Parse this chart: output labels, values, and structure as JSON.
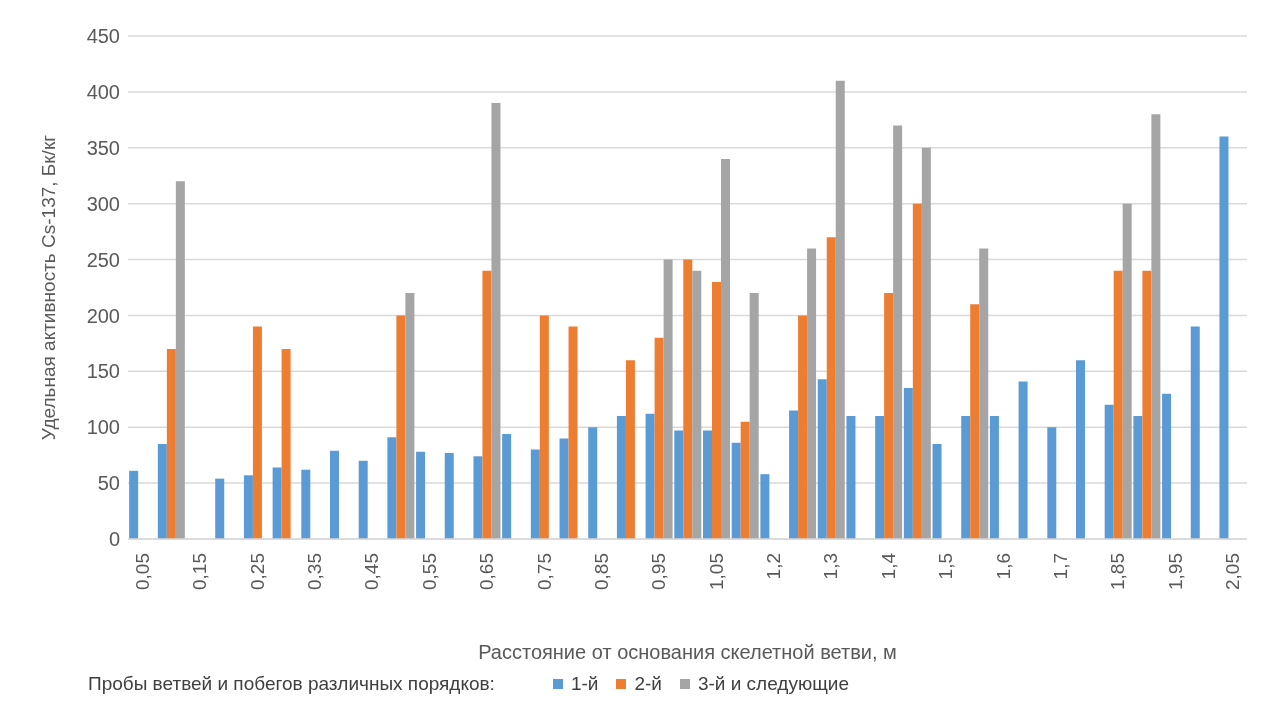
{
  "chart_data": {
    "type": "bar",
    "xlabel": "Расстояние от основания скелетной ветви, м",
    "ylabel": "Удельная активность Cs-137, Бк/кг",
    "legend_title": "Пробы ветвей и побегов различных порядков:",
    "categories": [
      "0,05",
      null,
      "0,15",
      null,
      "0,25",
      null,
      "0,35",
      null,
      "0,45",
      null,
      "0,55",
      null,
      "0,65",
      null,
      "0,75",
      null,
      "0,85",
      null,
      "0,95",
      null,
      "1,05",
      null,
      "1,2",
      null,
      "1,3",
      null,
      "1,4",
      null,
      "1,5",
      null,
      "1,6",
      null,
      "1,7",
      null,
      "1,85",
      null,
      "1,95",
      null,
      "2,05"
    ],
    "series": [
      {
        "name": "1-й",
        "color": "#5b9bd5",
        "values": [
          61,
          85,
          null,
          54,
          57,
          64,
          62,
          79,
          70,
          91,
          78,
          77,
          74,
          94,
          80,
          90,
          100,
          110,
          112,
          97,
          97,
          86,
          58,
          115,
          143,
          110,
          110,
          135,
          85,
          110,
          110,
          141,
          100,
          160,
          120,
          110,
          130,
          190,
          360
        ]
      },
      {
        "name": "2-й",
        "color": "#ed7d31",
        "values": [
          null,
          170,
          null,
          null,
          190,
          170,
          null,
          null,
          null,
          200,
          null,
          null,
          240,
          null,
          200,
          190,
          null,
          160,
          180,
          250,
          230,
          105,
          null,
          200,
          270,
          null,
          220,
          300,
          null,
          210,
          null,
          null,
          null,
          null,
          240,
          240,
          null,
          null,
          null
        ]
      },
      {
        "name": "3-й и следующие",
        "color": "#a5a5a5",
        "values": [
          null,
          320,
          null,
          null,
          null,
          null,
          null,
          null,
          null,
          220,
          null,
          null,
          390,
          null,
          null,
          null,
          null,
          null,
          250,
          240,
          340,
          220,
          null,
          260,
          410,
          null,
          370,
          350,
          null,
          260,
          null,
          null,
          null,
          null,
          300,
          380,
          null,
          null,
          null
        ]
      }
    ],
    "ylim": [
      0,
      450
    ],
    "yticks": [
      0,
      50,
      100,
      150,
      200,
      250,
      300,
      350,
      400,
      450
    ],
    "grid": "y",
    "legend": "bottom"
  }
}
